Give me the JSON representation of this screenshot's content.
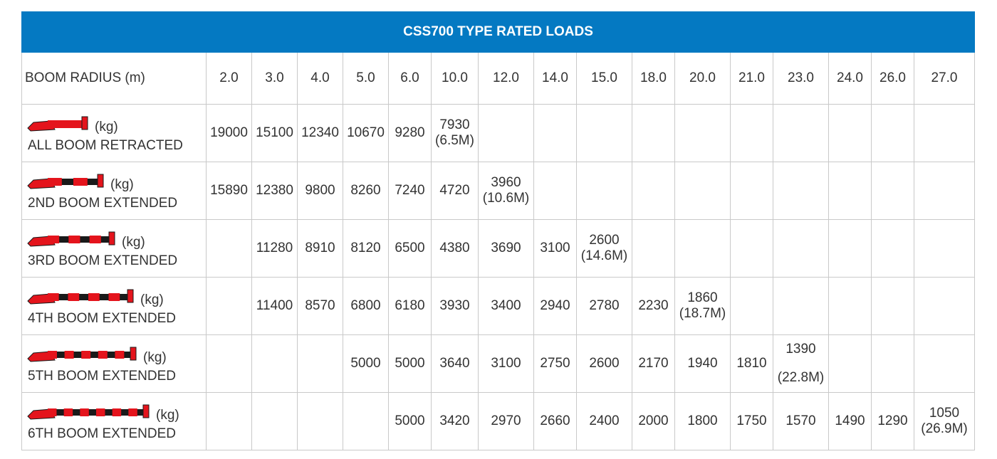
{
  "title": "CSS700 TYPE RATED LOADS",
  "header": {
    "label": "BOOM RADIUS (m)",
    "radii": [
      "2.0",
      "3.0",
      "4.0",
      "5.0",
      "6.0",
      "10.0",
      "12.0",
      "14.0",
      "15.0",
      "18.0",
      "20.0",
      "21.0",
      "23.0",
      "24.0",
      "26.0",
      "27.0"
    ]
  },
  "unit": "(kg)",
  "colors": {
    "header_bg": "#0479c2",
    "header_text": "#ffffff",
    "boom_red": "#e4141c",
    "boom_black": "#1a1a1a",
    "grid": "#c9c9c9"
  },
  "rows": [
    {
      "config": "ALL BOOM RETRACTED",
      "boom_icon": "crane-boom-retracted-icon",
      "cells": [
        [
          "19000"
        ],
        [
          "15100"
        ],
        [
          "12340"
        ],
        [
          "10670"
        ],
        [
          "9280"
        ],
        [
          "7930",
          "(6.5M)"
        ],
        [],
        [],
        [],
        [],
        [],
        [],
        [],
        [],
        [],
        []
      ]
    },
    {
      "config": "2ND BOOM EXTENDED",
      "boom_icon": "crane-boom-2-sections-icon",
      "cells": [
        [
          "15890"
        ],
        [
          "12380"
        ],
        [
          "9800"
        ],
        [
          "8260"
        ],
        [
          "7240"
        ],
        [
          "4720"
        ],
        [
          "3960",
          "(10.6M)"
        ],
        [],
        [],
        [],
        [],
        [],
        [],
        [],
        [],
        []
      ]
    },
    {
      "config": "3RD BOOM EXTENDED",
      "boom_icon": "crane-boom-3-sections-icon",
      "cells": [
        [],
        [
          "11280"
        ],
        [
          "8910"
        ],
        [
          "8120"
        ],
        [
          "6500"
        ],
        [
          "4380"
        ],
        [
          "3690"
        ],
        [
          "3100"
        ],
        [
          "2600",
          "(14.6M)"
        ],
        [],
        [],
        [],
        [],
        [],
        [],
        []
      ]
    },
    {
      "config": "4TH BOOM EXTENDED",
      "boom_icon": "crane-boom-4-sections-icon",
      "cells": [
        [],
        [
          "11400"
        ],
        [
          "8570"
        ],
        [
          "6800"
        ],
        [
          "6180"
        ],
        [
          "3930"
        ],
        [
          "3400"
        ],
        [
          "2940"
        ],
        [
          "2780"
        ],
        [
          "2230"
        ],
        [
          "1860",
          "(18.7M)"
        ],
        [],
        [],
        [],
        [],
        []
      ]
    },
    {
      "config": "5TH BOOM EXTENDED",
      "boom_icon": "crane-boom-5-sections-icon",
      "cells": [
        [],
        [],
        [],
        [
          "5000"
        ],
        [
          "5000"
        ],
        [
          "3640"
        ],
        [
          "3100"
        ],
        [
          "2750"
        ],
        [
          "2600"
        ],
        [
          "2170"
        ],
        [
          "1940"
        ],
        [
          "1810"
        ],
        [
          "1390",
          "(22.8M)"
        ],
        [],
        [],
        []
      ]
    },
    {
      "config": "6TH BOOM EXTENDED",
      "boom_icon": "crane-boom-6-sections-icon",
      "cells": [
        [],
        [],
        [],
        [],
        [
          "5000"
        ],
        [
          "3420"
        ],
        [
          "2970"
        ],
        [
          "2660"
        ],
        [
          "2400"
        ],
        [
          "2000"
        ],
        [
          "1800"
        ],
        [
          "1750"
        ],
        [
          "1570"
        ],
        [
          "1490"
        ],
        [
          "1290"
        ],
        [
          "1050",
          "(26.9M)"
        ]
      ]
    }
  ]
}
